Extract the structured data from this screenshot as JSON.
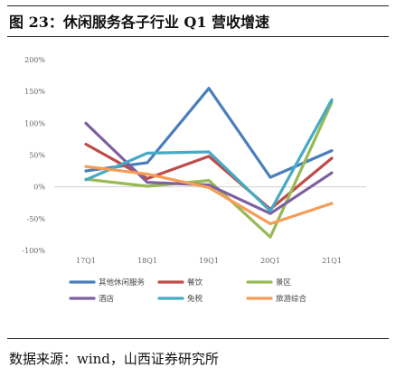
{
  "header": {
    "title": "图 23：休闲服务各子行业 Q1 营收增速"
  },
  "footer": {
    "source": "数据来源：wind，山西证券研究所"
  },
  "chart_data": {
    "type": "line",
    "categories": [
      "17Q1",
      "18Q1",
      "19Q1",
      "20Q1",
      "21Q1"
    ],
    "y_tick_labels": [
      "200%",
      "150%",
      "100%",
      "50%",
      "0%",
      "-50%",
      "-100%"
    ],
    "ylim": [
      -100,
      200
    ],
    "y_unit": "%",
    "grid": false,
    "legend_position": "bottom",
    "series": [
      {
        "name": "其他休闲服务",
        "color": "#4a7ebb",
        "values": [
          25,
          38,
          155,
          15,
          57
        ]
      },
      {
        "name": "餐饮",
        "color": "#be4b48",
        "values": [
          67,
          13,
          48,
          -35,
          45
        ]
      },
      {
        "name": "景区",
        "color": "#98b954",
        "values": [
          12,
          1,
          10,
          -79,
          133
        ]
      },
      {
        "name": "酒店",
        "color": "#7d60a0",
        "values": [
          100,
          7,
          3,
          -42,
          22
        ]
      },
      {
        "name": "免税",
        "color": "#46aac5",
        "values": [
          11,
          53,
          55,
          -38,
          137
        ]
      },
      {
        "name": "旅游综合",
        "color": "#f59d56",
        "values": [
          32,
          20,
          -1,
          -58,
          -26
        ]
      }
    ]
  }
}
